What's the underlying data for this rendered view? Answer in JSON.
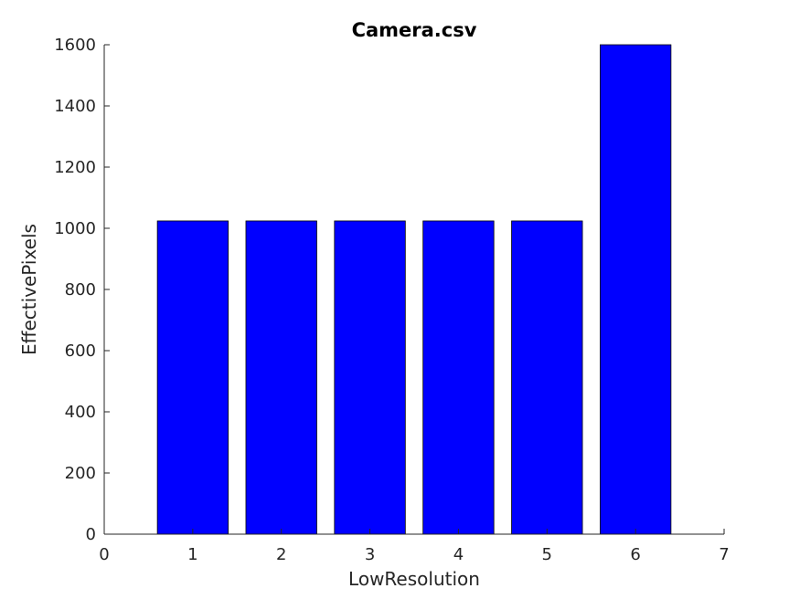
{
  "chart_data": {
    "type": "bar",
    "title": "Camera.csv",
    "xlabel": "LowResolution",
    "ylabel": "EffectivePixels",
    "x": [
      1,
      2,
      3,
      4,
      5,
      6
    ],
    "values": [
      1024,
      1024,
      1024,
      1024,
      1024,
      1600
    ],
    "xlim": [
      0,
      7
    ],
    "ylim": [
      0,
      1600
    ],
    "xticks": [
      "0",
      "1",
      "2",
      "3",
      "4",
      "5",
      "6",
      "7"
    ],
    "yticks": [
      "0",
      "200",
      "400",
      "600",
      "800",
      "1000",
      "1200",
      "1400",
      "1600"
    ],
    "bar_color": "#0000ff",
    "grid": false,
    "legend": "none"
  }
}
